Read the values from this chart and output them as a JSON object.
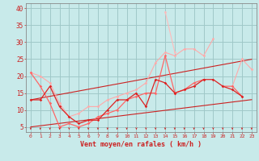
{
  "x": [
    0,
    1,
    2,
    3,
    4,
    5,
    6,
    7,
    8,
    9,
    10,
    11,
    12,
    13,
    14,
    15,
    16,
    17,
    18,
    19,
    20,
    21,
    22,
    23
  ],
  "line_dark1": [
    13,
    13,
    17,
    11,
    8,
    6,
    7,
    7,
    10,
    13,
    13,
    15,
    11,
    19,
    18,
    15,
    16,
    17,
    19,
    19,
    17,
    16,
    14,
    null
  ],
  "line_dark2": [
    21,
    17,
    12,
    5,
    6,
    5,
    6,
    8,
    9,
    10,
    13,
    14,
    15,
    15,
    26,
    15,
    16,
    18,
    19,
    null,
    17,
    17,
    14,
    null
  ],
  "line_light1": [
    21,
    20,
    18,
    12,
    8,
    9,
    11,
    11,
    13,
    14,
    15,
    16,
    18,
    24,
    27,
    26,
    28,
    28,
    26,
    31,
    null,
    17,
    25,
    22
  ],
  "line_light2": [
    null,
    null,
    null,
    null,
    null,
    null,
    null,
    null,
    null,
    null,
    null,
    null,
    null,
    null,
    39,
    27,
    null,
    null,
    null,
    null,
    null,
    null,
    null,
    null
  ],
  "straight_low": [
    5,
    5.35,
    5.7,
    6.05,
    6.4,
    6.75,
    7.1,
    7.45,
    7.8,
    8.15,
    8.5,
    8.85,
    9.2,
    9.55,
    9.9,
    10.25,
    10.6,
    10.95,
    11.3,
    11.65,
    12.0,
    12.35,
    12.7,
    13.05
  ],
  "straight_high": [
    13,
    13.52,
    14.04,
    14.56,
    15.08,
    15.6,
    16.12,
    16.64,
    17.16,
    17.68,
    18.2,
    18.72,
    19.24,
    19.76,
    20.28,
    20.8,
    21.32,
    21.84,
    22.36,
    22.88,
    23.4,
    23.92,
    24.44,
    24.96
  ],
  "bg_color": "#c8eaea",
  "grid_color": "#a0c8c8",
  "xlabel": "Vent moyen/en rafales ( km/h )",
  "ylabel_ticks": [
    5,
    10,
    15,
    20,
    25,
    30,
    35,
    40
  ],
  "xlim": [
    -0.5,
    23.5
  ],
  "ylim": [
    3.5,
    41.5
  ]
}
